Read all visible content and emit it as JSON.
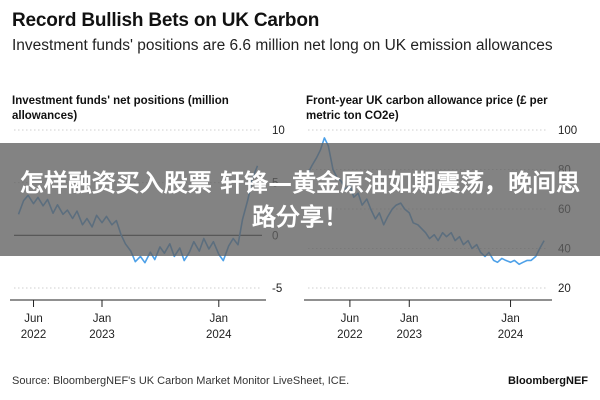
{
  "header": {
    "title": "Record Bullish Bets on UK Carbon",
    "subtitle": "Investment funds' positions are 6.6 million net long on UK emission allowances"
  },
  "footer": {
    "source": "Source: BloombergNEF's UK Carbon Market Monitor LiveSheet, ICE.",
    "brand": "BloombergNEF"
  },
  "overlay": {
    "text": "怎样融资买入股票 轩锋—黄金原油如期震荡，晚间思路分享！"
  },
  "colors": {
    "series": "#4ea1e8",
    "gridline": "#cfcfcf",
    "zeroline": "#222222",
    "overlay": "#606060"
  },
  "chart_data": [
    {
      "type": "line",
      "title": "Investment funds' net positions (million allowances)",
      "y_axis_side": "right",
      "yticks": [
        10,
        5,
        0,
        -5
      ],
      "ytick_labels": [
        "10",
        "5",
        "0",
        "-5"
      ],
      "ylim": [
        -5,
        10
      ],
      "zero_line": true,
      "xticks": [
        {
          "date": "2022-06-01",
          "label_top": "Jun",
          "label_bottom": "2022"
        },
        {
          "date": "2023-01-01",
          "label_top": "Jan",
          "label_bottom": "2023"
        },
        {
          "date": "2024-01-01",
          "label_top": "Jan",
          "label_bottom": "2024"
        }
      ],
      "xlim": [
        "2022-04-01",
        "2024-05-15"
      ],
      "x": [
        "2022-04-15",
        "2022-05-01",
        "2022-05-15",
        "2022-06-01",
        "2022-06-15",
        "2022-07-01",
        "2022-07-15",
        "2022-08-01",
        "2022-08-15",
        "2022-09-01",
        "2022-09-15",
        "2022-10-01",
        "2022-10-15",
        "2022-11-01",
        "2022-11-15",
        "2022-12-01",
        "2022-12-15",
        "2023-01-01",
        "2023-01-15",
        "2023-02-01",
        "2023-02-15",
        "2023-03-01",
        "2023-03-15",
        "2023-04-01",
        "2023-04-15",
        "2023-05-01",
        "2023-05-15",
        "2023-06-01",
        "2023-06-15",
        "2023-07-01",
        "2023-07-15",
        "2023-08-01",
        "2023-08-15",
        "2023-09-01",
        "2023-09-15",
        "2023-10-01",
        "2023-10-15",
        "2023-11-01",
        "2023-11-15",
        "2023-12-01",
        "2023-12-15",
        "2024-01-01",
        "2024-01-15",
        "2024-02-01",
        "2024-02-15",
        "2024-03-01",
        "2024-03-15",
        "2024-04-01",
        "2024-04-15",
        "2024-05-01"
      ],
      "values": [
        2.0,
        3.3,
        3.8,
        3.0,
        3.6,
        2.8,
        3.4,
        2.1,
        2.9,
        2.0,
        2.4,
        1.6,
        2.3,
        1.0,
        1.6,
        0.8,
        1.9,
        1.2,
        1.8,
        1.0,
        1.4,
        0.1,
        -0.8,
        -1.5,
        -2.5,
        -2.0,
        -2.6,
        -1.6,
        -2.3,
        -1.1,
        -1.7,
        -0.8,
        -2.0,
        -1.2,
        -2.4,
        -1.6,
        -0.6,
        -1.5,
        -0.3,
        -1.3,
        -0.6,
        -1.8,
        -2.4,
        -1.0,
        -0.3,
        -0.9,
        1.5,
        3.4,
        5.4,
        6.6
      ]
    },
    {
      "type": "line",
      "title": "Front-year UK carbon allowance price (£ per metric ton CO2e)",
      "y_axis_side": "right",
      "yticks": [
        100,
        80,
        60,
        40,
        20
      ],
      "ytick_labels": [
        "100",
        "80",
        "60",
        "40",
        "20"
      ],
      "ylim": [
        20,
        100
      ],
      "xticks": [
        {
          "date": "2022-06-01",
          "label_top": "Jun",
          "label_bottom": "2022"
        },
        {
          "date": "2023-01-01",
          "label_top": "Jan",
          "label_bottom": "2023"
        },
        {
          "date": "2024-01-01",
          "label_top": "Jan",
          "label_bottom": "2024"
        }
      ],
      "xlim": [
        "2022-01-01",
        "2024-05-15"
      ],
      "x": [
        "2022-01-01",
        "2022-01-15",
        "2022-02-01",
        "2022-02-15",
        "2022-03-01",
        "2022-03-15",
        "2022-04-01",
        "2022-04-15",
        "2022-05-01",
        "2022-05-15",
        "2022-06-01",
        "2022-06-15",
        "2022-07-01",
        "2022-07-15",
        "2022-08-01",
        "2022-08-15",
        "2022-09-01",
        "2022-09-15",
        "2022-10-01",
        "2022-10-15",
        "2022-11-01",
        "2022-11-15",
        "2022-12-01",
        "2022-12-15",
        "2023-01-01",
        "2023-01-15",
        "2023-02-01",
        "2023-02-15",
        "2023-03-01",
        "2023-03-15",
        "2023-04-01",
        "2023-04-15",
        "2023-05-01",
        "2023-05-15",
        "2023-06-01",
        "2023-06-15",
        "2023-07-01",
        "2023-07-15",
        "2023-08-01",
        "2023-08-15",
        "2023-09-01",
        "2023-09-15",
        "2023-10-01",
        "2023-10-15",
        "2023-11-01",
        "2023-11-15",
        "2023-12-01",
        "2023-12-15",
        "2024-01-01",
        "2024-01-15",
        "2024-02-01",
        "2024-02-15",
        "2024-03-01",
        "2024-03-15",
        "2024-04-01",
        "2024-04-15",
        "2024-05-01"
      ],
      "values": [
        78,
        82,
        86,
        90,
        96,
        92,
        80,
        76,
        74,
        70,
        72,
        66,
        68,
        62,
        65,
        60,
        55,
        58,
        52,
        56,
        60,
        62,
        63,
        60,
        58,
        53,
        52,
        50,
        48,
        45,
        47,
        44,
        48,
        46,
        48,
        44,
        46,
        42,
        44,
        40,
        42,
        38,
        36,
        38,
        34,
        33,
        35,
        34,
        33,
        34,
        32,
        33,
        34,
        34,
        36,
        40,
        44
      ]
    }
  ]
}
